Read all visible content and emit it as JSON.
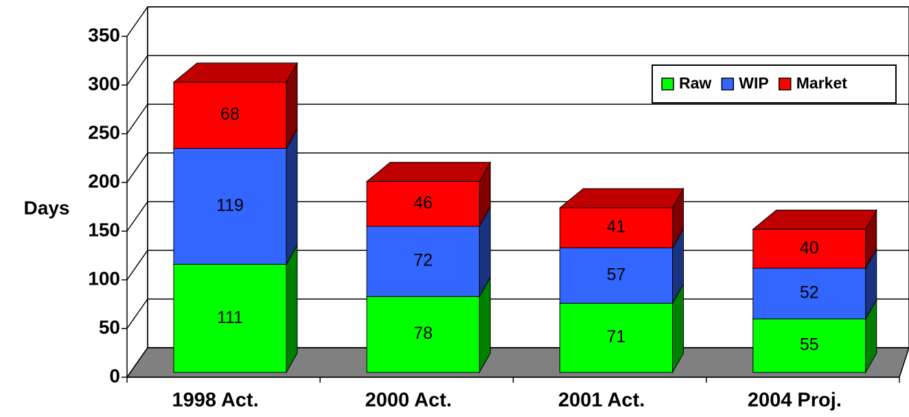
{
  "chart_data": {
    "type": "bar3d_stacked",
    "y_label": "Days",
    "categories": [
      "1998 Act.",
      "2000 Act.",
      "2001 Act.",
      "2004 Proj."
    ],
    "series": [
      {
        "name": "Raw",
        "color": "#00ff00",
        "values": [
          111,
          78,
          71,
          55
        ]
      },
      {
        "name": "WIP",
        "color": "#3366ff",
        "values": [
          119,
          72,
          57,
          52
        ]
      },
      {
        "name": "Market",
        "color": "#ff0000",
        "values": [
          68,
          46,
          41,
          40
        ]
      }
    ],
    "ylim": [
      0,
      350
    ],
    "yticks": [
      0,
      50,
      100,
      150,
      200,
      250,
      300,
      350
    ],
    "grid": true,
    "legend": "top-right"
  }
}
